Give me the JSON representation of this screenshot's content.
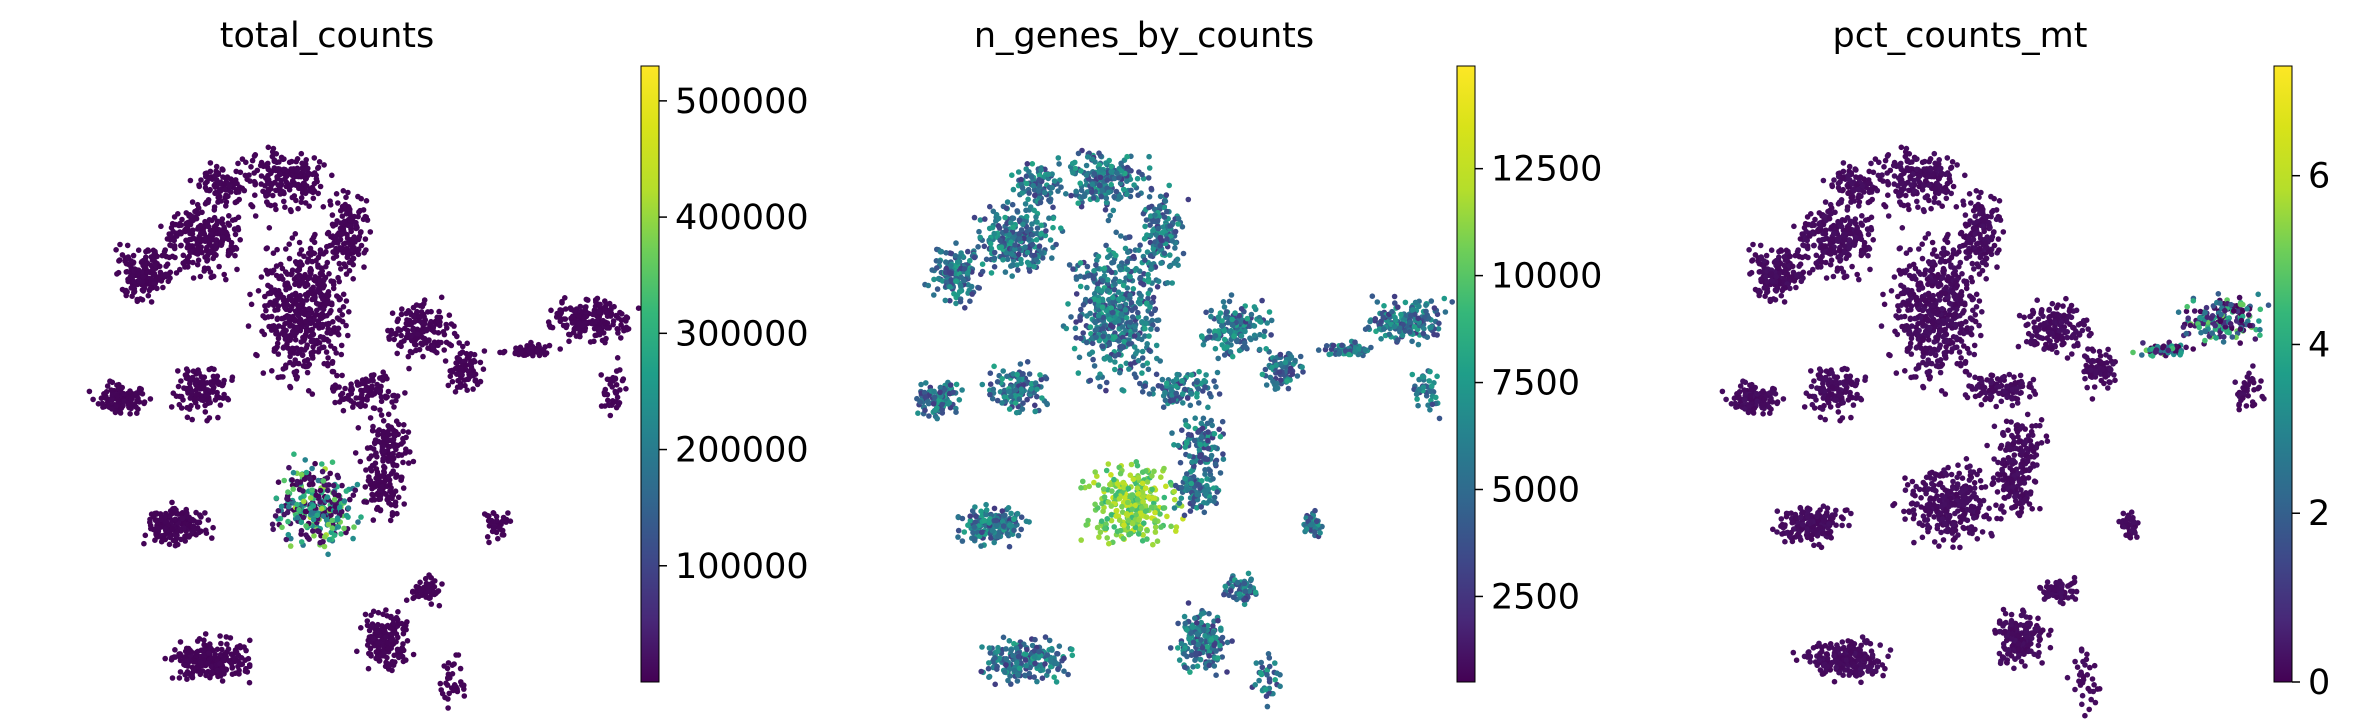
{
  "chart_data": [
    {
      "type": "scatter",
      "title": "total_counts",
      "colormap": "viridis",
      "colorbar": {
        "min": 0,
        "max": 530000,
        "ticks": [
          100000,
          200000,
          300000,
          400000,
          500000
        ],
        "tick_labels": [
          "100000",
          "200000",
          "300000",
          "400000",
          "500000"
        ]
      },
      "highlight": "high values concentrated in central-lower cluster",
      "background_value": 5000,
      "hotspot_value": 350000
    },
    {
      "type": "scatter",
      "title": "n_genes_by_counts",
      "colormap": "viridis",
      "colorbar": {
        "min": 500,
        "max": 14900,
        "ticks": [
          2500,
          5000,
          7500,
          10000,
          12500
        ],
        "tick_labels": [
          "2500",
          "5000",
          "7500",
          "10000",
          "12500"
        ]
      },
      "highlight": "high values concentrated in central-lower cluster",
      "background_value": 4500,
      "hotspot_value": 13000
    },
    {
      "type": "scatter",
      "title": "pct_counts_mt",
      "colormap": "viridis",
      "colorbar": {
        "min": 0,
        "max": 7.3,
        "ticks": [
          0,
          2,
          4,
          6
        ],
        "tick_labels": [
          "0",
          "2",
          "4",
          "6"
        ]
      },
      "highlight": "elevated values in right-side cluster",
      "background_value": 0.2,
      "hotspot_value": 4
    }
  ],
  "colors": {
    "viridis_low": "#440154",
    "viridis_mid": "#21918c",
    "viridis_high": "#fde725"
  }
}
